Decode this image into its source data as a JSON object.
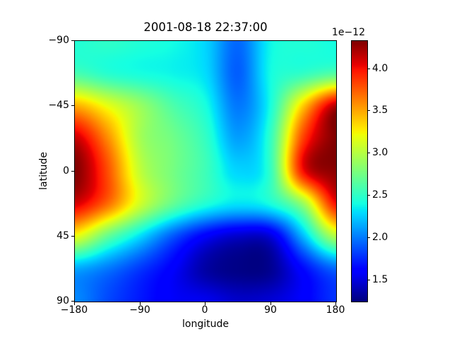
{
  "figure": {
    "background": "#ffffff",
    "spine_color": "#000000",
    "text_color": "#000000"
  },
  "chart_data": {
    "type": "heatmap",
    "title": "2001-08-18 22:37:00",
    "xlabel": "longitude",
    "ylabel": "latitude",
    "x_range": [
      -180,
      180
    ],
    "y_range": [
      -90,
      90
    ],
    "y_axis_inverted": true,
    "grid_lines": false,
    "colormap": "jet",
    "x_ticks": [
      {
        "value": -180,
        "label": "−180"
      },
      {
        "value": -90,
        "label": "−90"
      },
      {
        "value": 0,
        "label": "0"
      },
      {
        "value": 90,
        "label": "90"
      },
      {
        "value": 180,
        "label": "180"
      }
    ],
    "y_ticks": [
      {
        "value": -90,
        "label": "−90"
      },
      {
        "value": -45,
        "label": "−45"
      },
      {
        "value": 0,
        "label": "0"
      },
      {
        "value": 45,
        "label": "45"
      },
      {
        "value": 90,
        "label": "90"
      }
    ],
    "colorbar": {
      "scale_label": "1e−12",
      "vmin": 1.25,
      "vmax": 4.33,
      "ticks": [
        {
          "value": 1.5,
          "label": "1.5"
        },
        {
          "value": 2.0,
          "label": "2.0"
        },
        {
          "value": 2.5,
          "label": "2.5"
        },
        {
          "value": 3.0,
          "label": "3.0"
        },
        {
          "value": 3.5,
          "label": "3.5"
        },
        {
          "value": 4.0,
          "label": "4.0"
        }
      ]
    },
    "grid": {
      "lons": [
        -180,
        -135,
        -90,
        -45,
        0,
        45,
        90,
        135,
        180
      ],
      "lats": [
        -90,
        -67.5,
        -45,
        -22.5,
        0,
        22.5,
        45,
        67.5,
        90
      ],
      "values_1e12": [
        [
          2.45,
          2.5,
          2.45,
          2.4,
          2.28,
          1.95,
          2.38,
          2.45,
          2.4
        ],
        [
          2.6,
          2.48,
          2.42,
          2.38,
          2.3,
          1.92,
          2.4,
          2.52,
          2.65
        ],
        [
          3.5,
          3.2,
          2.9,
          2.62,
          2.42,
          2.0,
          2.42,
          3.4,
          4.2
        ],
        [
          4.15,
          3.6,
          2.95,
          2.75,
          2.52,
          2.12,
          2.52,
          3.85,
          4.33
        ],
        [
          4.33,
          3.8,
          3.05,
          2.77,
          2.56,
          2.28,
          2.52,
          4.0,
          4.3
        ],
        [
          4.1,
          3.7,
          3.1,
          2.7,
          2.45,
          2.32,
          2.42,
          2.9,
          4.0
        ],
        [
          3.2,
          2.7,
          2.3,
          1.9,
          1.6,
          1.45,
          1.5,
          2.2,
          3.0
        ],
        [
          2.15,
          2.0,
          1.8,
          1.6,
          1.35,
          1.27,
          1.3,
          1.65,
          1.95
        ],
        [
          2.05,
          1.85,
          1.7,
          1.58,
          1.55,
          1.45,
          1.48,
          1.6,
          1.78
        ]
      ]
    }
  }
}
